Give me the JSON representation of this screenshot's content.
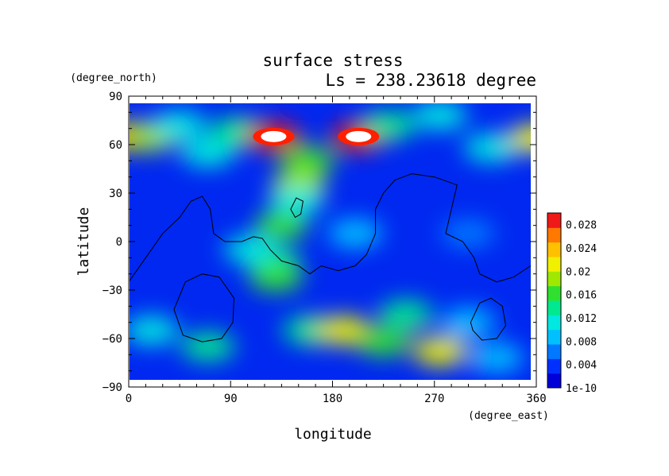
{
  "chart_data": {
    "type": "heatmap",
    "title": "surface stress",
    "subtitle": "Ls = 238.23618 degree",
    "xlabel": "longitude",
    "ylabel": "latitude",
    "x_unit": "(degree_east)",
    "y_unit": "(degree_north)",
    "xlim": [
      0,
      360
    ],
    "ylim": [
      -90,
      90
    ],
    "x_ticks": [
      "0",
      "90",
      "180",
      "270",
      "360"
    ],
    "y_ticks": [
      "90",
      "60",
      "30",
      "0",
      "−30",
      "−60",
      "−90"
    ],
    "x_tick_values": [
      0,
      90,
      180,
      270,
      360
    ],
    "y_tick_values": [
      90,
      60,
      30,
      0,
      -30,
      -60,
      -90
    ],
    "colorbar": {
      "labels": [
        "0.028",
        "0.024",
        "0.02",
        "0.016",
        "0.012",
        "0.008",
        "0.004",
        "1e-10"
      ],
      "values": [
        0.028,
        0.024,
        0.02,
        0.016,
        0.012,
        0.008,
        0.004,
        0
      ],
      "min": 0,
      "max": 0.03,
      "colors": [
        "#0000d8",
        "#0030ff",
        "#0078ff",
        "#00c0ff",
        "#00e8e0",
        "#00e890",
        "#30e030",
        "#a0e800",
        "#f0f000",
        "#ffc000",
        "#ff7800",
        "#f01818"
      ]
    },
    "regions": [
      {
        "lon": 0,
        "lat": 65,
        "value": 0.024
      },
      {
        "lon": 20,
        "lat": 65,
        "value": 0.018
      },
      {
        "lon": 45,
        "lat": 72,
        "value": 0.012
      },
      {
        "lon": 70,
        "lat": 55,
        "value": 0.012
      },
      {
        "lon": 95,
        "lat": 68,
        "value": 0.014
      },
      {
        "lon": 128,
        "lat": 65,
        "value": 0.032
      },
      {
        "lon": 158,
        "lat": 50,
        "value": 0.016
      },
      {
        "lon": 150,
        "lat": 35,
        "value": 0.018
      },
      {
        "lon": 203,
        "lat": 65,
        "value": 0.032
      },
      {
        "lon": 230,
        "lat": 72,
        "value": 0.014
      },
      {
        "lon": 275,
        "lat": 78,
        "value": 0.012
      },
      {
        "lon": 320,
        "lat": 58,
        "value": 0.01
      },
      {
        "lon": 360,
        "lat": 64,
        "value": 0.022
      },
      {
        "lon": 148,
        "lat": 25,
        "value": 0.01
      },
      {
        "lon": 135,
        "lat": 10,
        "value": 0.016
      },
      {
        "lon": 128,
        "lat": -12,
        "value": 0.014
      },
      {
        "lon": 130,
        "lat": -22,
        "value": 0.016
      },
      {
        "lon": 108,
        "lat": -5,
        "value": 0.01
      },
      {
        "lon": 200,
        "lat": 5,
        "value": 0.008
      },
      {
        "lon": 300,
        "lat": 5,
        "value": 0.006
      },
      {
        "lon": 20,
        "lat": -55,
        "value": 0.01
      },
      {
        "lon": 70,
        "lat": -65,
        "value": 0.014
      },
      {
        "lon": 160,
        "lat": -55,
        "value": 0.014
      },
      {
        "lon": 190,
        "lat": -55,
        "value": 0.02
      },
      {
        "lon": 225,
        "lat": -62,
        "value": 0.016
      },
      {
        "lon": 245,
        "lat": -45,
        "value": 0.014
      },
      {
        "lon": 275,
        "lat": -68,
        "value": 0.02
      },
      {
        "lon": 325,
        "lat": -72,
        "value": 0.008
      },
      {
        "lon": 300,
        "lat": -50,
        "value": 0.008
      }
    ]
  }
}
